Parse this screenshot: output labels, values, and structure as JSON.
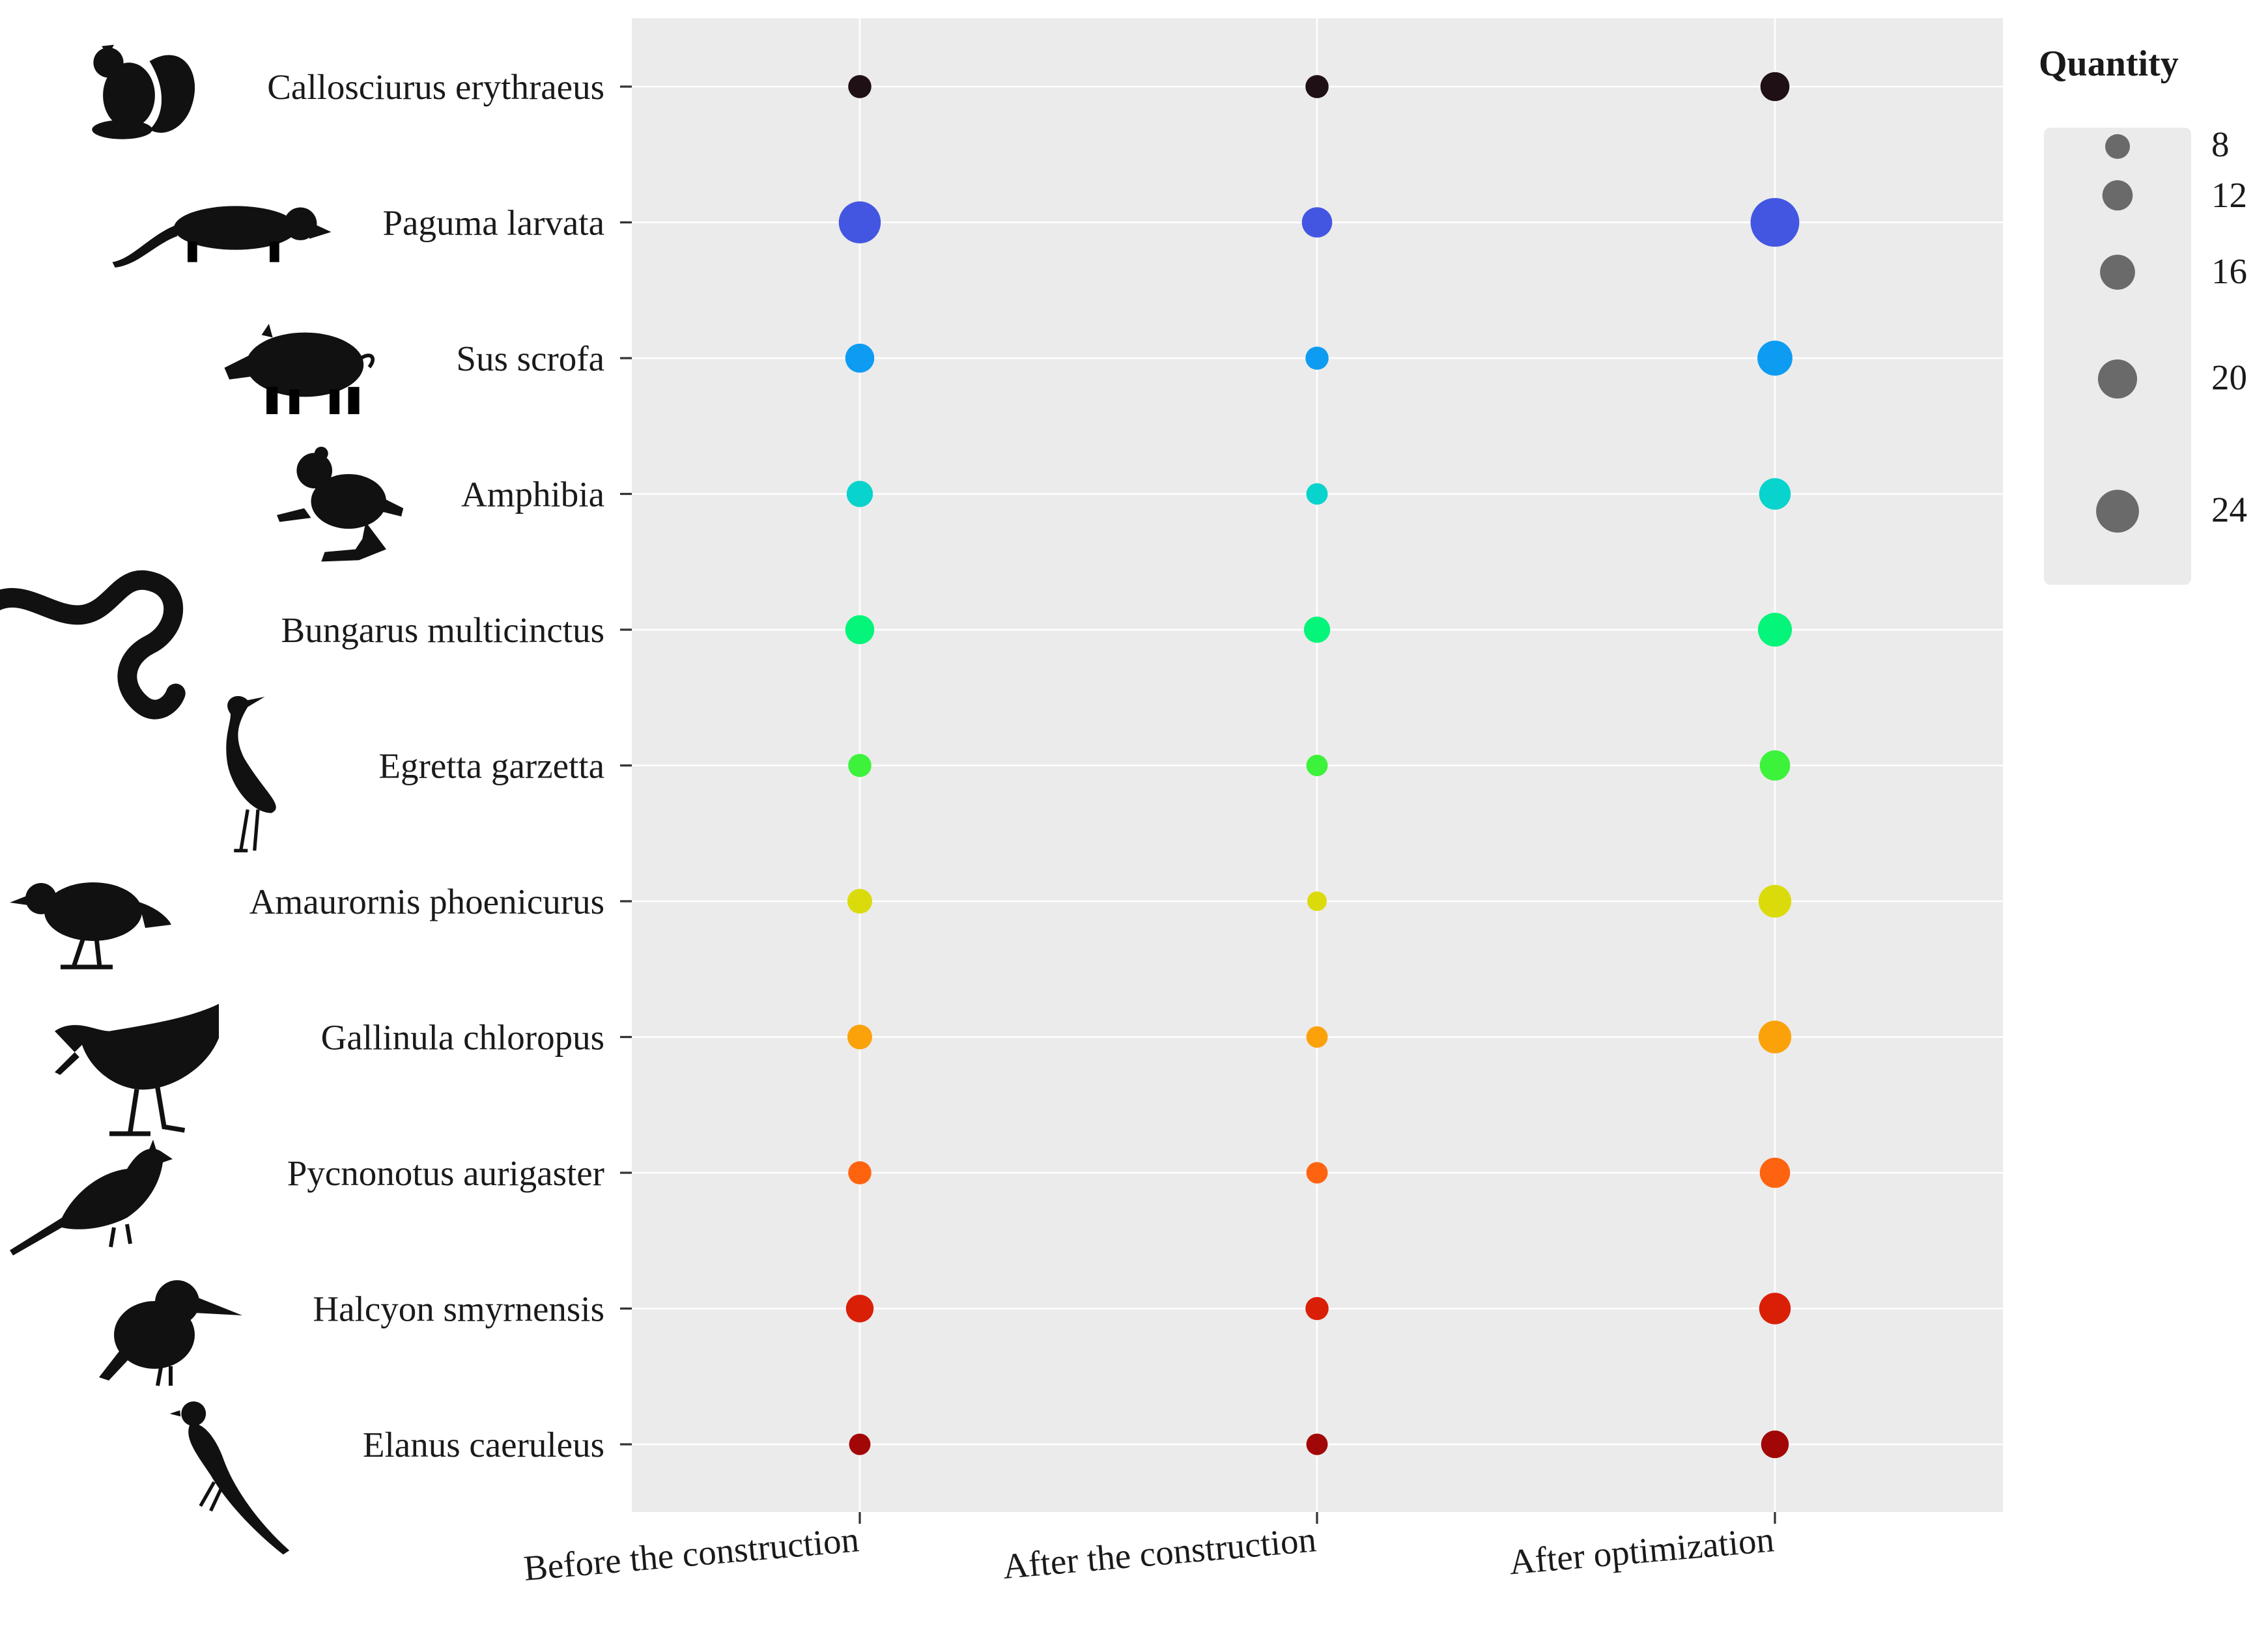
{
  "chart_data": {
    "type": "scatter",
    "x_categories": [
      "Before the construction",
      "After the construction",
      "After optimization"
    ],
    "y_categories": [
      "Callosciurus erythraeus",
      "Paguma larvata",
      "Sus scrofa",
      "Amphibia",
      "Bungarus multicinctus",
      "Egretta garzetta",
      "Amaurornis phoenicurus",
      "Gallinula chloropus",
      "Pycnonotus aurigaster",
      "Halcyon smyrnensis",
      "Elanus caeruleus"
    ],
    "colors": [
      "#1f1016",
      "#4356e2",
      "#0d9cf2",
      "#08d3cc",
      "#05f47a",
      "#3df23a",
      "#dbdb0b",
      "#fba20b",
      "#fe6410",
      "#da1f07",
      "#a20707"
    ],
    "series": [
      {
        "values": [
          7,
          23,
          11,
          9,
          11,
          7,
          8,
          8,
          7,
          10,
          6
        ]
      },
      {
        "values": [
          7,
          12,
          7,
          6,
          9,
          6,
          5,
          6,
          6,
          7,
          6
        ]
      },
      {
        "values": [
          11,
          31,
          16,
          13,
          15,
          12,
          14,
          14,
          12,
          13,
          10
        ]
      }
    ],
    "legend": {
      "title": "Quantity",
      "values": [
        8,
        12,
        16,
        20,
        24
      ],
      "labels": [
        "8",
        "12",
        "16",
        "20",
        "24"
      ],
      "position": "right"
    },
    "grid": true,
    "icons": [
      "squirrel-icon",
      "civet-icon",
      "boar-icon",
      "frog-icon",
      "snake-icon",
      "egret-icon",
      "waterhen-icon",
      "moorhen-icon",
      "bulbul-icon",
      "kingfisher-icon",
      "kite-icon"
    ]
  }
}
